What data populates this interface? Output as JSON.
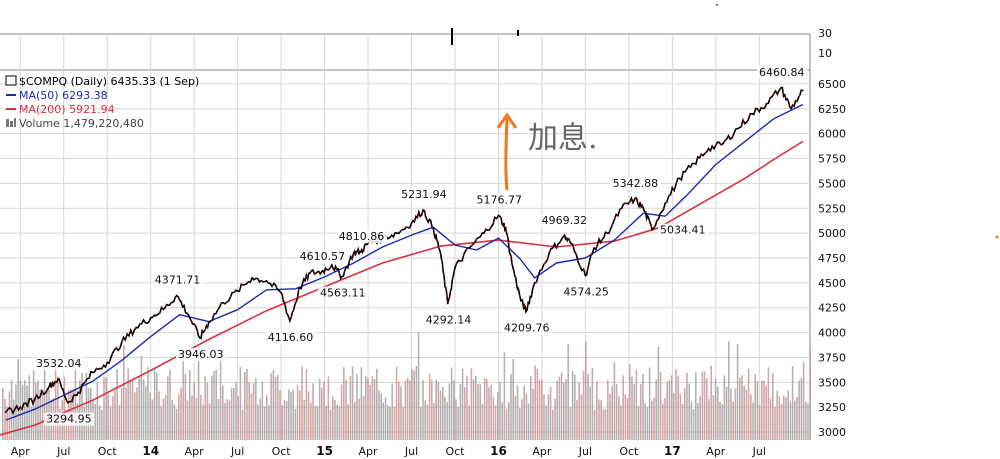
{
  "chart_data": {
    "type": "line",
    "symbol": "$COMPQ",
    "legend": {
      "main": "$COMPQ (Daily) 6435.33 (1 Sep)",
      "ma50": "MA(50) 6293.38",
      "ma200": "MA(200) 5921.94",
      "volume": "Volume 1,479,220,480"
    },
    "colors": {
      "price": "#000000",
      "up": "#cc0000",
      "ma50": "#1a2bb0",
      "ma200": "#d83045",
      "volume": "#c88a8a",
      "grid": "#d6d6d6",
      "annotation": "#f07820"
    },
    "x_ticks": [
      {
        "label": "Apr",
        "bold": false,
        "month": 3
      },
      {
        "label": "Jul",
        "bold": false,
        "month": 6
      },
      {
        "label": "Oct",
        "bold": false,
        "month": 9
      },
      {
        "label": "14",
        "bold": true,
        "month": 12
      },
      {
        "label": "Apr",
        "bold": false,
        "month": 15
      },
      {
        "label": "Jul",
        "bold": false,
        "month": 18
      },
      {
        "label": "Oct",
        "bold": false,
        "month": 21
      },
      {
        "label": "15",
        "bold": true,
        "month": 24
      },
      {
        "label": "Apr",
        "bold": false,
        "month": 27
      },
      {
        "label": "Jul",
        "bold": false,
        "month": 30
      },
      {
        "label": "Oct",
        "bold": false,
        "month": 33
      },
      {
        "label": "16",
        "bold": true,
        "month": 36
      },
      {
        "label": "Apr",
        "bold": false,
        "month": 39
      },
      {
        "label": "Jul",
        "bold": false,
        "month": 42
      },
      {
        "label": "Oct",
        "bold": false,
        "month": 45
      },
      {
        "label": "17",
        "bold": true,
        "month": 48
      },
      {
        "label": "Apr",
        "bold": false,
        "month": 51
      },
      {
        "label": "Jul",
        "bold": false,
        "month": 54
      }
    ],
    "y_ticks": [
      3000,
      3250,
      3500,
      3750,
      4000,
      4250,
      4500,
      4750,
      5000,
      5250,
      5500,
      5750,
      6000,
      6250,
      6500
    ],
    "ylim": [
      2920,
      6620
    ],
    "xlim": [
      1.6,
      57.5
    ],
    "upper_panel_ticks": [
      {
        "label": "30",
        "value": 30
      },
      {
        "label": "10",
        "value": 10
      }
    ],
    "price_points": [
      [
        2.0,
        3200
      ],
      [
        3.0,
        3250
      ],
      [
        4.0,
        3330
      ],
      [
        5.0,
        3460
      ],
      [
        5.6,
        3532
      ],
      [
        6.3,
        3295
      ],
      [
        7.0,
        3400
      ],
      [
        8.0,
        3600
      ],
      [
        9.0,
        3700
      ],
      [
        10.0,
        3900
      ],
      [
        11.0,
        4050
      ],
      [
        12.0,
        4150
      ],
      [
        13.0,
        4250
      ],
      [
        13.8,
        4372
      ],
      [
        14.6,
        4180
      ],
      [
        15.4,
        3946
      ],
      [
        16.0,
        4100
      ],
      [
        17.0,
        4300
      ],
      [
        18.0,
        4420
      ],
      [
        19.0,
        4550
      ],
      [
        20.0,
        4520
      ],
      [
        21.0,
        4400
      ],
      [
        21.6,
        4117
      ],
      [
        22.3,
        4450
      ],
      [
        23.0,
        4600
      ],
      [
        23.8,
        4611
      ],
      [
        24.5,
        4680
      ],
      [
        25.2,
        4563
      ],
      [
        26.0,
        4800
      ],
      [
        26.5,
        4811
      ],
      [
        27.0,
        4900
      ],
      [
        28.0,
        4950
      ],
      [
        29.0,
        5000
      ],
      [
        30.0,
        5100
      ],
      [
        30.8,
        5232
      ],
      [
        31.5,
        5050
      ],
      [
        32.0,
        4800
      ],
      [
        32.5,
        4292
      ],
      [
        33.0,
        4650
      ],
      [
        34.0,
        4850
      ],
      [
        35.0,
        5000
      ],
      [
        36.0,
        5177
      ],
      [
        36.5,
        5050
      ],
      [
        37.0,
        4650
      ],
      [
        37.5,
        4350
      ],
      [
        37.9,
        4210
      ],
      [
        38.5,
        4500
      ],
      [
        39.5,
        4800
      ],
      [
        40.5,
        4969
      ],
      [
        41.0,
        4900
      ],
      [
        42.0,
        4574
      ],
      [
        42.6,
        4850
      ],
      [
        43.5,
        5000
      ],
      [
        44.5,
        5250
      ],
      [
        45.4,
        5343
      ],
      [
        46.0,
        5250
      ],
      [
        46.6,
        5034
      ],
      [
        47.5,
        5300
      ],
      [
        48.5,
        5550
      ],
      [
        49.5,
        5700
      ],
      [
        50.5,
        5850
      ],
      [
        51.5,
        5900
      ],
      [
        52.5,
        6050
      ],
      [
        53.5,
        6200
      ],
      [
        54.5,
        6300
      ],
      [
        55.5,
        6461
      ],
      [
        56.2,
        6250
      ],
      [
        57.0,
        6435
      ]
    ],
    "ma50_points": [
      [
        2.0,
        3120
      ],
      [
        4.0,
        3230
      ],
      [
        6.0,
        3370
      ],
      [
        8.0,
        3510
      ],
      [
        10.0,
        3720
      ],
      [
        12.0,
        3960
      ],
      [
        14.0,
        4180
      ],
      [
        16.0,
        4110
      ],
      [
        18.0,
        4230
      ],
      [
        20.0,
        4430
      ],
      [
        22.0,
        4440
      ],
      [
        24.0,
        4560
      ],
      [
        26.0,
        4700
      ],
      [
        28.0,
        4860
      ],
      [
        30.0,
        4980
      ],
      [
        31.5,
        5060
      ],
      [
        33.0,
        4880
      ],
      [
        34.5,
        4830
      ],
      [
        36.0,
        4950
      ],
      [
        37.5,
        4740
      ],
      [
        38.5,
        4550
      ],
      [
        40.0,
        4700
      ],
      [
        42.0,
        4750
      ],
      [
        44.0,
        4930
      ],
      [
        46.0,
        5200
      ],
      [
        47.5,
        5170
      ],
      [
        49.0,
        5380
      ],
      [
        51.0,
        5690
      ],
      [
        53.0,
        5920
      ],
      [
        55.0,
        6150
      ],
      [
        57.0,
        6293
      ]
    ],
    "ma200_points": [
      [
        1.6,
        2970
      ],
      [
        4.0,
        3070
      ],
      [
        8.0,
        3320
      ],
      [
        12.0,
        3620
      ],
      [
        16.0,
        3930
      ],
      [
        20.0,
        4220
      ],
      [
        24.0,
        4460
      ],
      [
        28.0,
        4700
      ],
      [
        32.0,
        4870
      ],
      [
        36.0,
        4930
      ],
      [
        40.0,
        4860
      ],
      [
        44.0,
        4920
      ],
      [
        47.0,
        5050
      ],
      [
        50.0,
        5300
      ],
      [
        53.0,
        5550
      ],
      [
        55.0,
        5740
      ],
      [
        57.0,
        5922
      ]
    ],
    "annotations": [
      {
        "text": "3532.04",
        "x": 5.6,
        "y": 3532,
        "pos": "above"
      },
      {
        "text": "3294.95",
        "x": 6.3,
        "y": 3295,
        "pos": "below"
      },
      {
        "text": "4371.71",
        "x": 13.8,
        "y": 4372,
        "pos": "above"
      },
      {
        "text": "3946.03",
        "x": 15.4,
        "y": 3946,
        "pos": "below"
      },
      {
        "text": "4610.57",
        "x": 23.8,
        "y": 4611,
        "pos": "above"
      },
      {
        "text": "4116.60",
        "x": 21.6,
        "y": 4117,
        "pos": "below"
      },
      {
        "text": "4810.86",
        "x": 26.5,
        "y": 4811,
        "pos": "above"
      },
      {
        "text": "4563.11",
        "x": 25.2,
        "y": 4563,
        "pos": "below"
      },
      {
        "text": "5231.94",
        "x": 30.8,
        "y": 5232,
        "pos": "above"
      },
      {
        "text": "4292.14",
        "x": 32.5,
        "y": 4292,
        "pos": "below"
      },
      {
        "text": "5176.77",
        "x": 36.0,
        "y": 5177,
        "pos": "above"
      },
      {
        "text": "4209.76",
        "x": 37.9,
        "y": 4210,
        "pos": "below"
      },
      {
        "text": "4969.32",
        "x": 40.5,
        "y": 4969,
        "pos": "above"
      },
      {
        "text": "4574.25",
        "x": 42.0,
        "y": 4574,
        "pos": "below"
      },
      {
        "text": "5342.88",
        "x": 45.4,
        "y": 5343,
        "pos": "above"
      },
      {
        "text": "5034.41",
        "x": 46.6,
        "y": 5034,
        "pos": "right"
      },
      {
        "text": "6460.84",
        "x": 55.5,
        "y": 6461,
        "pos": "above"
      }
    ],
    "handwriting": "加息."
  }
}
